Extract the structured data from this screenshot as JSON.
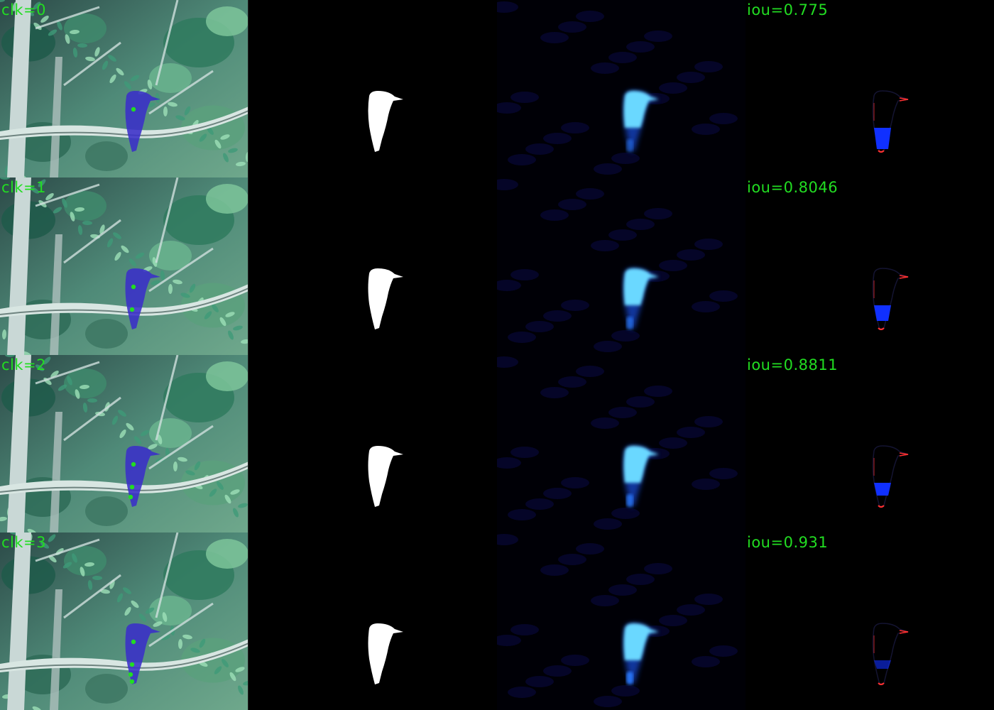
{
  "rows": [
    {
      "click_label": "clk=0",
      "iou_label": "iou=0.775",
      "clicks": 1
    },
    {
      "click_label": "clk=1",
      "iou_label": "iou=0.8046",
      "clicks": 2
    },
    {
      "click_label": "clk=2",
      "iou_label": "iou=0.8811",
      "clicks": 3
    },
    {
      "click_label": "clk=3",
      "iou_label": "iou=0.931",
      "clicks": 4
    }
  ],
  "colors": {
    "label_text": "#22dd22",
    "mask_overlay": "#3a2fc8",
    "click_point": "#22dd22",
    "gt_mask": "#ffffff",
    "prob_map": "#6ad8ff",
    "error_false_negative": "#1030ff",
    "error_false_positive": "#ff3030"
  },
  "columns": [
    "image-with-prediction-overlay",
    "ground-truth-mask",
    "probability-map",
    "error-map"
  ]
}
